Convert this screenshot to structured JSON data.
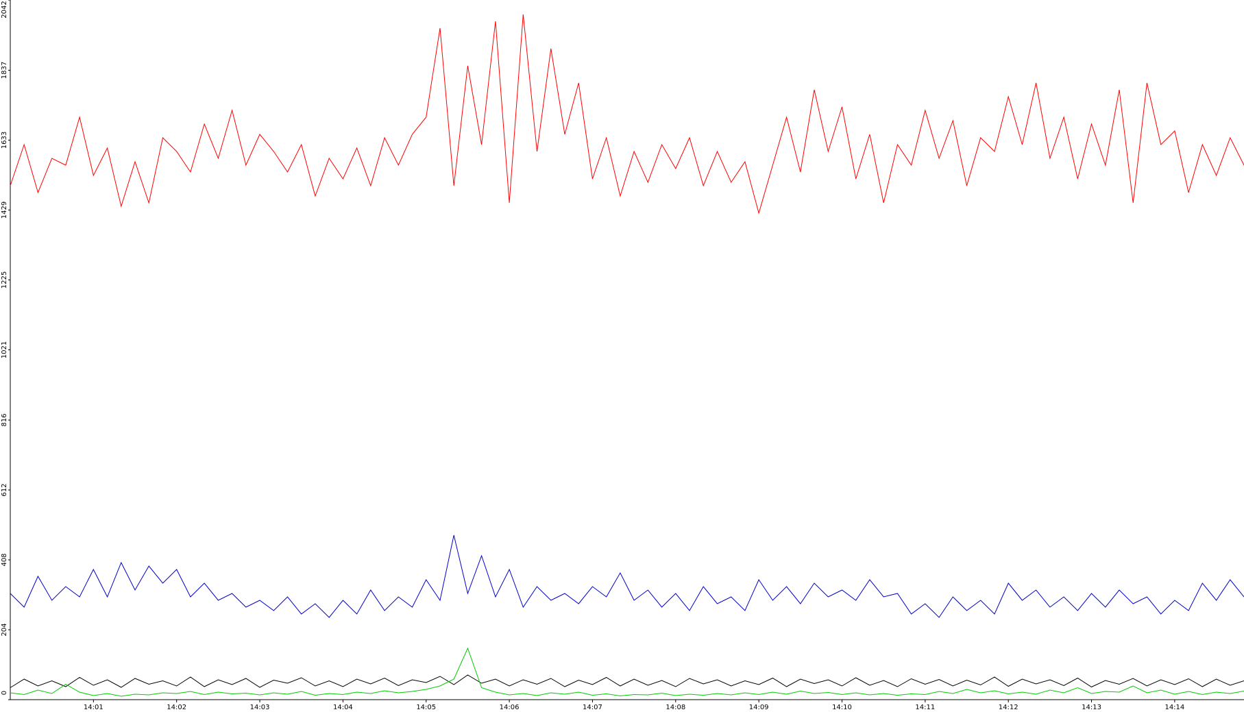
{
  "chart_data": {
    "type": "line",
    "categories": [
      null,
      null,
      null,
      null,
      null,
      null,
      "14:01",
      null,
      null,
      null,
      null,
      null,
      "14:02",
      null,
      null,
      null,
      null,
      null,
      "14:03",
      null,
      null,
      null,
      null,
      null,
      "14:04",
      null,
      null,
      null,
      null,
      null,
      "14:05",
      null,
      null,
      null,
      null,
      null,
      "14:06",
      null,
      null,
      null,
      null,
      null,
      "14:07",
      null,
      null,
      null,
      null,
      null,
      "14:08",
      null,
      null,
      null,
      null,
      null,
      "14:09",
      null,
      null,
      null,
      null,
      null,
      "14:10",
      null,
      null,
      null,
      null,
      null,
      "14:11",
      null,
      null,
      null,
      null,
      null,
      "14:12",
      null,
      null,
      null,
      null,
      null,
      "14:13",
      null,
      null,
      null,
      null,
      null,
      "14:14",
      null,
      null,
      null,
      null,
      null
    ],
    "series": [
      {
        "color": "#ff0000",
        "values": [
          1500,
          1620,
          1480,
          1580,
          1560,
          1700,
          1530,
          1610,
          1440,
          1570,
          1450,
          1640,
          1600,
          1540,
          1680,
          1580,
          1720,
          1560,
          1650,
          1600,
          1540,
          1620,
          1470,
          1580,
          1520,
          1610,
          1500,
          1640,
          1560,
          1650,
          1700,
          1960,
          1500,
          1850,
          1620,
          1980,
          1450,
          2000,
          1600,
          1900,
          1650,
          1800,
          1520,
          1640,
          1470,
          1600,
          1510,
          1620,
          1550,
          1640,
          1500,
          1600,
          1510,
          1570,
          1420,
          1560,
          1700,
          1540,
          1780,
          1600,
          1730,
          1520,
          1650,
          1450,
          1620,
          1560,
          1720,
          1580,
          1690,
          1500,
          1640,
          1600,
          1760,
          1620,
          1800,
          1580,
          1700,
          1520,
          1680,
          1560,
          1780,
          1450,
          1800,
          1620,
          1660,
          1480,
          1620,
          1530,
          1640,
          1560
        ]
      },
      {
        "color": "#0000cc",
        "values": [
          310,
          270,
          360,
          290,
          330,
          300,
          380,
          300,
          400,
          320,
          390,
          340,
          380,
          300,
          340,
          290,
          310,
          270,
          290,
          260,
          300,
          250,
          280,
          240,
          290,
          250,
          320,
          260,
          300,
          270,
          350,
          290,
          480,
          310,
          420,
          300,
          380,
          270,
          330,
          290,
          310,
          280,
          330,
          300,
          370,
          290,
          320,
          270,
          310,
          260,
          330,
          280,
          300,
          260,
          350,
          290,
          330,
          280,
          340,
          300,
          320,
          290,
          350,
          300,
          310,
          250,
          280,
          240,
          300,
          260,
          290,
          250,
          340,
          290,
          320,
          270,
          300,
          260,
          310,
          270,
          320,
          280,
          300,
          250,
          290,
          260,
          340,
          290,
          350,
          300
        ]
      },
      {
        "color": "#000000",
        "values": [
          35,
          60,
          40,
          55,
          38,
          65,
          42,
          58,
          36,
          62,
          45,
          55,
          40,
          66,
          38,
          58,
          44,
          62,
          36,
          57,
          48,
          64,
          40,
          55,
          38,
          60,
          46,
          63,
          41,
          58,
          50,
          68,
          44,
          72,
          48,
          60,
          40,
          58,
          45,
          62,
          38,
          57,
          44,
          65,
          40,
          60,
          42,
          56,
          38,
          62,
          46,
          58,
          40,
          55,
          44,
          63,
          38,
          60,
          47,
          58,
          40,
          64,
          42,
          56,
          38,
          61,
          45,
          59,
          40,
          57,
          43,
          66,
          39,
          60,
          46,
          58,
          41,
          63,
          37,
          56,
          45,
          62,
          40,
          58,
          44,
          61,
          38,
          60,
          42,
          55
        ]
      },
      {
        "color": "#00cc00",
        "values": [
          20,
          15,
          28,
          18,
          45,
          22,
          12,
          18,
          10,
          16,
          14,
          20,
          18,
          24,
          15,
          22,
          17,
          19,
          14,
          20,
          16,
          24,
          13,
          18,
          15,
          22,
          18,
          26,
          20,
          24,
          30,
          40,
          60,
          150,
          35,
          22,
          14,
          18,
          12,
          20,
          16,
          22,
          13,
          17,
          11,
          15,
          14,
          19,
          12,
          16,
          13,
          18,
          14,
          20,
          15,
          22,
          16,
          25,
          18,
          21,
          15,
          20,
          14,
          18,
          13,
          17,
          15,
          24,
          18,
          30,
          20,
          26,
          17,
          22,
          16,
          28,
          20,
          35,
          18,
          24,
          22,
          40,
          20,
          28,
          16,
          24,
          15,
          22,
          18,
          25
        ]
      }
    ],
    "ylim": [
      0,
      2042
    ],
    "yticks": [
      0,
      204,
      408,
      612,
      816,
      1021,
      1225,
      1429,
      1633,
      1837,
      2042
    ]
  }
}
